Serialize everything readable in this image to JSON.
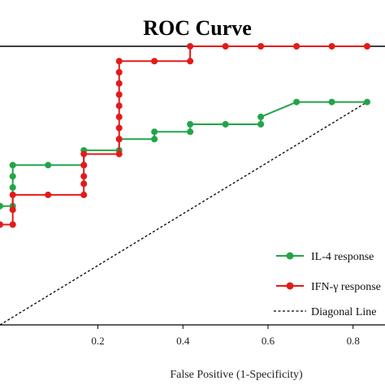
{
  "chart_data": {
    "type": "line",
    "title": "ROC Curve",
    "xlabel": "False Positive (1-Specificity)",
    "ylabel": "",
    "xlim": [
      -0.03,
      0.875
    ],
    "ylim": [
      0.25,
      1.0
    ],
    "xticks": [
      {
        "value": 0.2,
        "label": "0.2"
      },
      {
        "value": 0.4,
        "label": "0.4"
      },
      {
        "value": 0.6,
        "label": "0.6"
      },
      {
        "value": 0.8,
        "label": "0.8"
      }
    ],
    "legend_position": "lower-right",
    "series": [
      {
        "name": "IL-4 response",
        "color": "#21a548",
        "style": "solid-markers",
        "points": [
          [
            -0.03,
            0.57
          ],
          [
            0.0,
            0.57
          ],
          [
            0.0,
            0.62
          ],
          [
            0.0,
            0.65
          ],
          [
            0.0,
            0.68
          ],
          [
            0.083,
            0.68
          ],
          [
            0.167,
            0.68
          ],
          [
            0.167,
            0.72
          ],
          [
            0.25,
            0.72
          ],
          [
            0.25,
            0.75
          ],
          [
            0.333,
            0.75
          ],
          [
            0.333,
            0.77
          ],
          [
            0.417,
            0.77
          ],
          [
            0.417,
            0.79
          ],
          [
            0.5,
            0.79
          ],
          [
            0.583,
            0.79
          ],
          [
            0.583,
            0.81
          ],
          [
            0.667,
            0.85
          ],
          [
            0.75,
            0.85
          ],
          [
            0.833,
            0.85
          ]
        ]
      },
      {
        "name": "IFN-γ response",
        "color": "#e31a1a",
        "style": "solid-markers",
        "points": [
          [
            -0.03,
            0.52
          ],
          [
            0.0,
            0.52
          ],
          [
            0.0,
            0.56
          ],
          [
            0.0,
            0.6
          ],
          [
            0.083,
            0.6
          ],
          [
            0.167,
            0.6
          ],
          [
            0.167,
            0.63
          ],
          [
            0.167,
            0.65
          ],
          [
            0.167,
            0.68
          ],
          [
            0.167,
            0.71
          ],
          [
            0.25,
            0.71
          ],
          [
            0.25,
            0.75
          ],
          [
            0.25,
            0.78
          ],
          [
            0.25,
            0.81
          ],
          [
            0.25,
            0.84
          ],
          [
            0.25,
            0.87
          ],
          [
            0.25,
            0.9
          ],
          [
            0.25,
            0.93
          ],
          [
            0.25,
            0.96
          ],
          [
            0.333,
            0.96
          ],
          [
            0.417,
            0.96
          ],
          [
            0.417,
            1.0
          ],
          [
            0.5,
            1.0
          ],
          [
            0.583,
            1.0
          ],
          [
            0.667,
            1.0
          ],
          [
            0.75,
            1.0
          ],
          [
            0.833,
            1.0
          ]
        ]
      },
      {
        "name": "Diagonal Line",
        "color": "#000000",
        "style": "dashed",
        "points": [
          [
            -0.03,
            0.25
          ],
          [
            0.833,
            0.85
          ]
        ]
      }
    ]
  }
}
